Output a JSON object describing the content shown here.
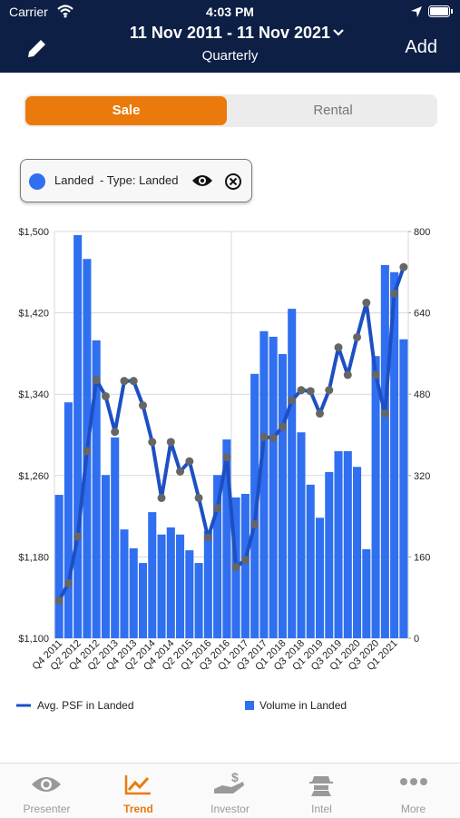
{
  "status_bar": {
    "carrier": "Carrier",
    "time": "4:03 PM"
  },
  "header": {
    "date_range": "11 Nov 2011 - 11 Nov 2021",
    "period": "Quarterly",
    "add": "Add"
  },
  "segments": [
    "Sale",
    "Rental"
  ],
  "filter_chip": {
    "name": "Landed",
    "detail": "- Type: Landed"
  },
  "chart_data": {
    "type": "combo",
    "categories": [
      "Q4 2011",
      null,
      "Q2 2012",
      null,
      "Q4 2012",
      null,
      "Q2 2013",
      null,
      "Q4 2013",
      null,
      "Q2 2014",
      null,
      "Q4 2014",
      null,
      "Q2 2015",
      null,
      "Q1 2016",
      null,
      "Q3 2016",
      null,
      "Q1 2017",
      null,
      "Q3 2017",
      null,
      "Q1 2018",
      null,
      "Q3 2018",
      null,
      "Q1 2019",
      null,
      "Q3 2019",
      null,
      "Q1 2020",
      null,
      "Q3 2020",
      null,
      "Q1 2021",
      null
    ],
    "series": [
      {
        "name": "Avg. PSF in Landed",
        "type": "line",
        "axis": "y",
        "color": "#1d4fc4",
        "marker_color": "#666666",
        "values": [
          1137,
          1154,
          1200,
          1284,
          1354,
          1338,
          1303,
          1353,
          1353,
          1329,
          1293,
          1238,
          1293,
          1264,
          1274,
          1238,
          1199,
          1228,
          1278,
          1170,
          1177,
          1212,
          1298,
          1297,
          1308,
          1334,
          1344,
          1343,
          1321,
          1344,
          1386,
          1359,
          1396,
          1430,
          1359,
          1321,
          1439,
          1465
        ]
      },
      {
        "name": "Volume in Landed",
        "type": "bar",
        "axis": "y2",
        "color": "#2f6ff0",
        "values": [
          282,
          464,
          793,
          746,
          586,
          321,
          395,
          214,
          177,
          148,
          248,
          204,
          218,
          204,
          173,
          148,
          211,
          321,
          391,
          277,
          284,
          520,
          604,
          593,
          559,
          648,
          405,
          302,
          237,
          327,
          368,
          368,
          337,
          175,
          555,
          734,
          720,
          588
        ]
      }
    ],
    "ylim": [
      1100,
      1500
    ],
    "yticks": [
      {
        "value": 1100,
        "label": "$1,100"
      },
      {
        "value": 1180,
        "label": "$1,180"
      },
      {
        "value": 1260,
        "label": "$1,260"
      },
      {
        "value": 1340,
        "label": "$1,340"
      },
      {
        "value": 1420,
        "label": "$1,420"
      },
      {
        "value": 1500,
        "label": "$1,500"
      }
    ],
    "y2lim": [
      0,
      800
    ],
    "y2ticks": [
      0,
      160,
      320,
      480,
      640,
      800
    ],
    "grid": true
  },
  "tabs": [
    "Presenter",
    "Trend",
    "Investor",
    "Intel",
    "More"
  ]
}
